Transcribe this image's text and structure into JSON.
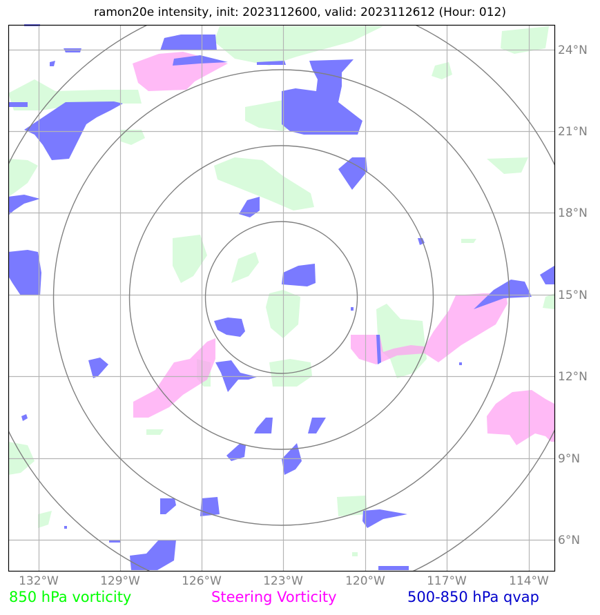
{
  "title": "ramon20e intensity, init: 2023112600, valid: 2023112612 (Hour: 012)",
  "lon_labels": [
    "132°W",
    "129°W",
    "126°W",
    "123°W",
    "120°W",
    "117°W",
    "114°W"
  ],
  "lat_labels": [
    "24°N",
    "21°N",
    "18°N",
    "15°N",
    "12°N",
    "9°N",
    "6°N"
  ],
  "legend": [
    {
      "label": "850 hPa vorticity",
      "color": "#00ff00"
    },
    {
      "label": "Steering Vorticity",
      "color": "#ff00ff"
    },
    {
      "label": "500-850 hPa qvap",
      "color": "#0000cc"
    }
  ],
  "colors": {
    "vorticity_fill": "#d9fbdc",
    "steering_fill": "#ffbdf7",
    "qvap_fill": "#7a7aff",
    "grid": "#b4b4b4",
    "range_rings": "#808080"
  },
  "map": {
    "extent": {
      "lon": [
        -133.2,
        -113.1
      ],
      "lat": [
        4.9,
        24.9
      ]
    },
    "center": {
      "lon": -123.0,
      "lat": 15.0
    },
    "range_rings_count": 4
  }
}
